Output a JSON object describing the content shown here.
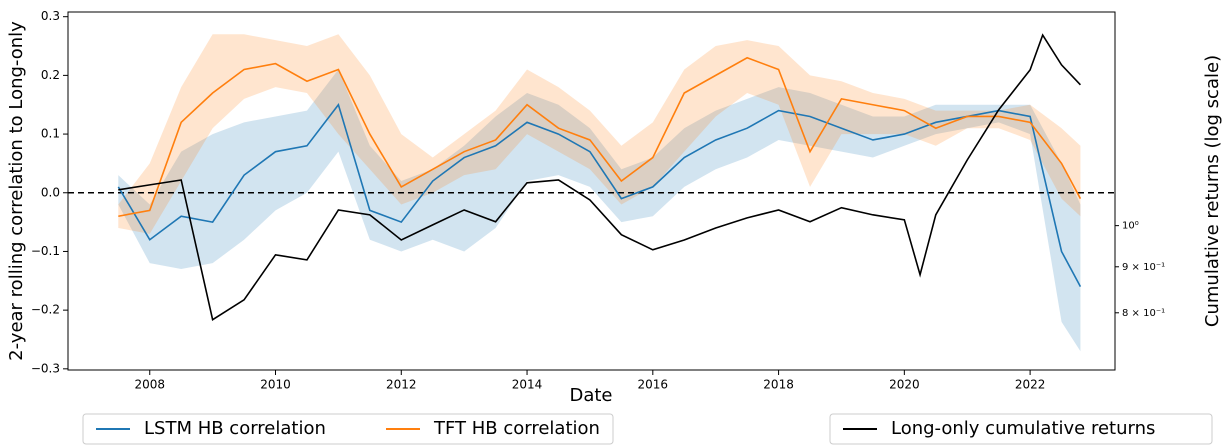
{
  "chart_data": {
    "type": "line",
    "xlabel": "Date",
    "ylabel": "2-year rolling correlation to Long-only",
    "y2label": "Cumulative returns (log scale)",
    "xlim": [
      2006.7,
      2023.35
    ],
    "xticks": [
      2008,
      2010,
      2012,
      2014,
      2016,
      2018,
      2020,
      2022
    ],
    "ylim": [
      -0.302,
      0.308
    ],
    "yticks": [
      {
        "value": -0.3,
        "label": "−0.3"
      },
      {
        "value": -0.2,
        "label": "−0.2"
      },
      {
        "value": -0.1,
        "label": "−0.1"
      },
      {
        "value": 0,
        "label": "0.0"
      },
      0.1,
      0.2,
      0.3
    ],
    "y2lim": [
      0.691,
      1.728
    ],
    "y2_log_scale": true,
    "y2ticks": [
      {
        "value": 0.8,
        "label": "8 × 10⁻¹"
      },
      {
        "value": 0.9,
        "label": "9 × 10⁻¹"
      },
      {
        "value": 1,
        "label": "10⁰"
      }
    ],
    "reference_line": 0,
    "series": [
      {
        "name": "LSTM HB correlation",
        "color": "#1f77b4",
        "legend": "left",
        "x": [
          2007.5,
          2008,
          2008.5,
          2009,
          2009.5,
          2010,
          2010.5,
          2011,
          2011.5,
          2012,
          2012.5,
          2013,
          2013.5,
          2014,
          2014.5,
          2015,
          2015.5,
          2016,
          2016.5,
          2017,
          2017.5,
          2018,
          2018.5,
          2019,
          2019.5,
          2020,
          2020.5,
          2021,
          2021.5,
          2022,
          2022.5,
          2022.8
        ],
        "values": [
          0.01,
          -0.08,
          -0.04,
          -0.05,
          0.03,
          0.07,
          0.08,
          0.15,
          -0.03,
          -0.05,
          0.02,
          0.06,
          0.08,
          0.12,
          0.1,
          0.07,
          -0.01,
          0.01,
          0.06,
          0.09,
          0.11,
          0.14,
          0.13,
          0.11,
          0.09,
          0.1,
          0.12,
          0.13,
          0.14,
          0.13,
          -0.1,
          -0.16
        ],
        "lower": [
          -0.02,
          -0.12,
          -0.13,
          -0.12,
          -0.08,
          -0.03,
          0,
          0.07,
          -0.08,
          -0.1,
          -0.08,
          -0.1,
          -0.06,
          0.02,
          0.03,
          0.01,
          -0.05,
          -0.04,
          0.01,
          0.04,
          0.06,
          0.09,
          0.08,
          0.07,
          0.06,
          0.08,
          0.1,
          0.11,
          0.12,
          0.1,
          -0.22,
          -0.27
        ],
        "upper": [
          0.03,
          -0.02,
          0.07,
          0.1,
          0.12,
          0.13,
          0.14,
          0.21,
          0.08,
          0.02,
          0.04,
          0.08,
          0.13,
          0.17,
          0.15,
          0.11,
          0.04,
          0.06,
          0.11,
          0.14,
          0.16,
          0.18,
          0.17,
          0.15,
          0.13,
          0.13,
          0.15,
          0.15,
          0.15,
          0.15,
          0.05,
          -0.02
        ]
      },
      {
        "name": "TFT HB correlation",
        "color": "#ff7f0e",
        "legend": "left",
        "x": [
          2007.5,
          2008,
          2008.5,
          2009,
          2009.5,
          2010,
          2010.5,
          2011,
          2011.5,
          2012,
          2012.5,
          2013,
          2013.5,
          2014,
          2014.5,
          2015,
          2015.5,
          2016,
          2016.5,
          2017,
          2017.5,
          2018,
          2018.5,
          2019,
          2019.5,
          2020,
          2020.5,
          2021,
          2021.5,
          2022,
          2022.5,
          2022.8
        ],
        "values": [
          -0.04,
          -0.03,
          0.12,
          0.17,
          0.21,
          0.22,
          0.19,
          0.21,
          0.1,
          0.01,
          0.04,
          0.07,
          0.09,
          0.15,
          0.11,
          0.09,
          0.02,
          0.06,
          0.17,
          0.2,
          0.23,
          0.21,
          0.07,
          0.16,
          0.15,
          0.14,
          0.11,
          0.13,
          0.13,
          0.12,
          0.05,
          -0.01
        ],
        "lower": [
          -0.06,
          -0.07,
          0.02,
          0.11,
          0.16,
          0.18,
          0.17,
          0.1,
          0.04,
          -0.02,
          0,
          0.03,
          0.04,
          0.1,
          0.07,
          0.04,
          -0.02,
          0.01,
          0.07,
          0.13,
          0.17,
          0.15,
          0.01,
          0.1,
          0.1,
          0.1,
          0.08,
          0.11,
          0.11,
          0.09,
          -0.01,
          -0.04
        ],
        "upper": [
          -0.02,
          0.05,
          0.18,
          0.27,
          0.27,
          0.26,
          0.25,
          0.27,
          0.2,
          0.1,
          0.06,
          0.1,
          0.14,
          0.21,
          0.18,
          0.14,
          0.08,
          0.12,
          0.21,
          0.25,
          0.26,
          0.25,
          0.2,
          0.19,
          0.17,
          0.16,
          0.14,
          0.14,
          0.14,
          0.15,
          0.11,
          0.08
        ]
      },
      {
        "name": "Long-only cumulative returns",
        "color": "#000000",
        "axis": "y2",
        "legend": "right",
        "x": [
          2007.5,
          2008,
          2008.5,
          2009,
          2009.5,
          2010,
          2010.5,
          2011,
          2011.5,
          2012,
          2012.5,
          2013,
          2013.5,
          2014,
          2014.5,
          2015,
          2015.5,
          2016,
          2016.5,
          2017,
          2017.5,
          2018,
          2018.5,
          2019,
          2019.5,
          2020,
          2020.25,
          2020.5,
          2021,
          2021.5,
          2022,
          2022.2,
          2022.5,
          2022.8
        ],
        "values": [
          1.096,
          1.11,
          1.124,
          0.786,
          0.827,
          0.928,
          0.916,
          1.041,
          1.028,
          0.964,
          1.002,
          1.041,
          1.01,
          1.116,
          1.124,
          1.068,
          0.977,
          0.94,
          0.964,
          0.994,
          1.02,
          1.041,
          1.01,
          1.047,
          1.028,
          1.015,
          0.882,
          1.028,
          1.183,
          1.345,
          1.49,
          1.629,
          1.509,
          1.434
        ]
      }
    ]
  }
}
